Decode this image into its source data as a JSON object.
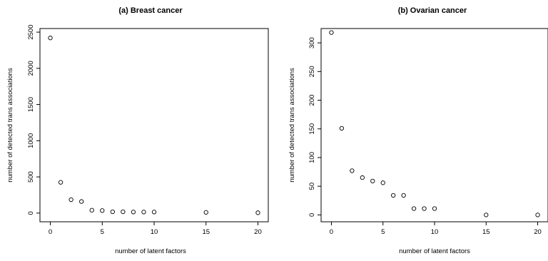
{
  "chart_data": [
    {
      "type": "scatter",
      "title": "(a) Breast cancer",
      "xlabel": "number of latent factors",
      "ylabel": "number of detected trans associations",
      "xlim": [
        -1,
        21
      ],
      "ylim": [
        -120,
        2550
      ],
      "xticks": [
        0,
        5,
        10,
        15,
        20
      ],
      "yticks": [
        0,
        500,
        1000,
        1500,
        2000,
        2500
      ],
      "grid": false,
      "x": [
        0,
        1,
        2,
        3,
        4,
        5,
        6,
        7,
        8,
        9,
        10,
        15,
        20
      ],
      "y": [
        2420,
        425,
        185,
        160,
        40,
        35,
        18,
        18,
        15,
        15,
        15,
        10,
        5
      ]
    },
    {
      "type": "scatter",
      "title": "(b) Ovarian cancer",
      "xlabel": "number of latent factors",
      "ylabel": "number of detected trans associations",
      "xlim": [
        -1,
        21
      ],
      "ylim": [
        -12,
        325
      ],
      "xticks": [
        0,
        5,
        10,
        15,
        20
      ],
      "yticks": [
        0,
        50,
        100,
        150,
        200,
        250,
        300
      ],
      "grid": false,
      "x": [
        0,
        1,
        2,
        3,
        4,
        5,
        6,
        7,
        8,
        9,
        10,
        15,
        20
      ],
      "y": [
        318,
        151,
        77,
        65,
        59,
        56,
        34,
        34,
        11,
        11,
        11,
        0,
        0
      ]
    }
  ]
}
